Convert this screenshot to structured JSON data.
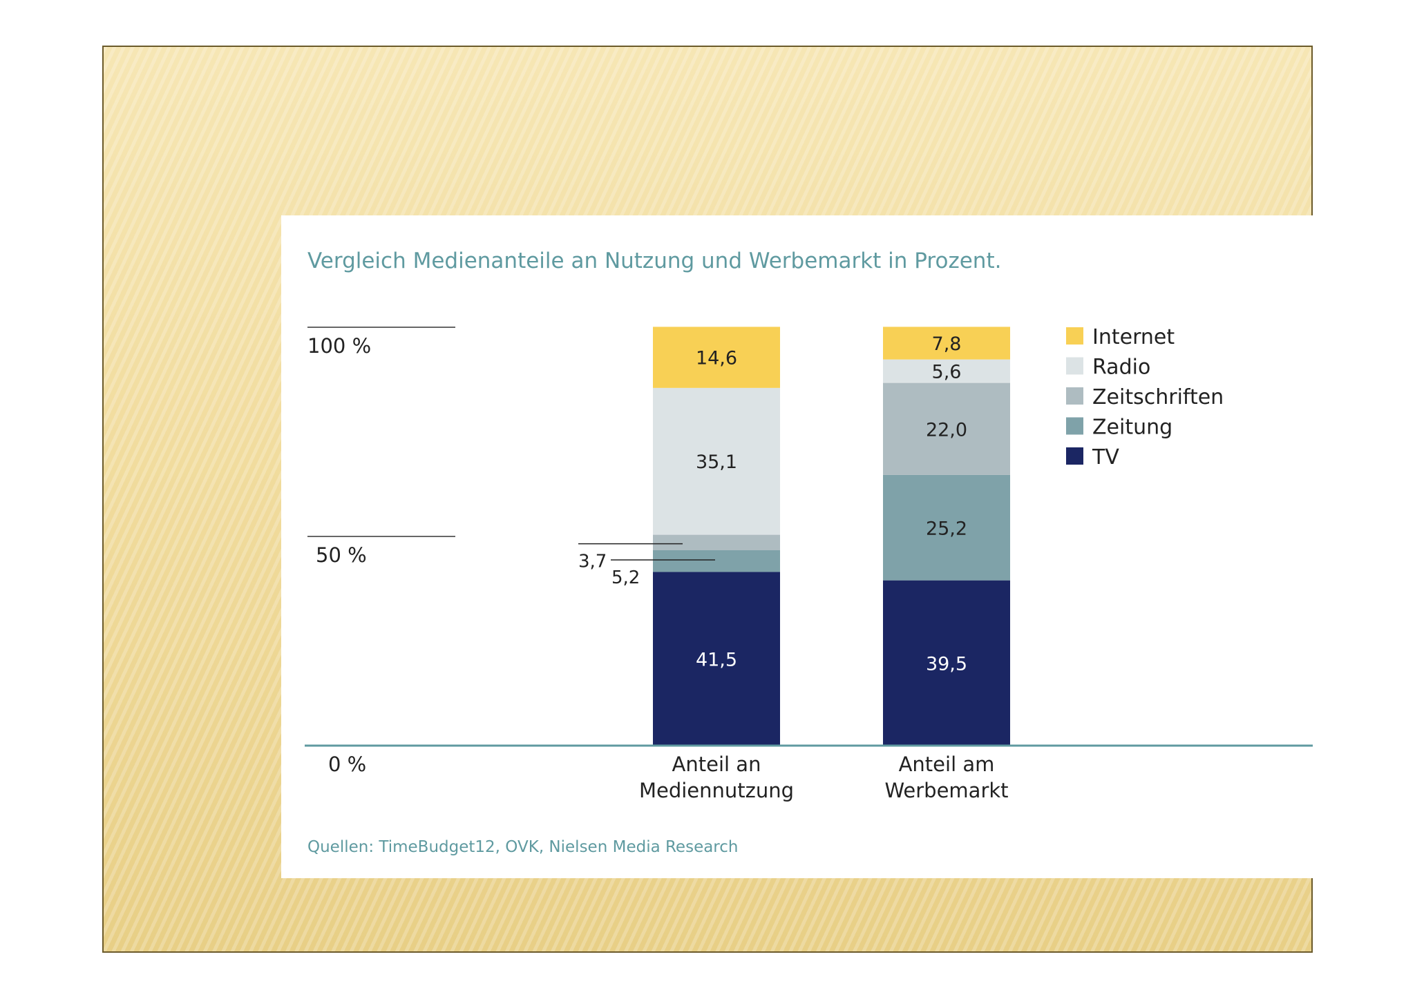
{
  "chart_data": {
    "type": "bar",
    "stacked": true,
    "title": "Vergleich Medienanteile an Nutzung und Werbemarkt in Prozent.",
    "source": "Quellen: TimeBudget12, OVK, Nielsen Media Research",
    "categories": [
      "Anteil an Mediennutzung",
      "Anteil am Werbemarkt"
    ],
    "y_ticks": [
      "100 %",
      "50 %",
      "0 %"
    ],
    "ylim": [
      0,
      100
    ],
    "legend_position": "right",
    "series": [
      {
        "name": "TV",
        "color": "#1b2663",
        "values": [
          41.5,
          39.5
        ],
        "labels": [
          "41,5",
          "39,5"
        ]
      },
      {
        "name": "Zeitung",
        "color": "#7fa2a9",
        "values": [
          5.2,
          25.2
        ],
        "labels": [
          "5,2",
          "25,2"
        ]
      },
      {
        "name": "Zeitschriften",
        "color": "#aebcc1",
        "values": [
          3.7,
          22.0
        ],
        "labels": [
          "3,7",
          "22,0"
        ]
      },
      {
        "name": "Radio",
        "color": "#dce3e5",
        "values": [
          35.1,
          5.6
        ],
        "labels": [
          "35,1",
          "5,6"
        ]
      },
      {
        "name": "Internet",
        "color": "#f8d055",
        "values": [
          14.6,
          7.8
        ],
        "labels": [
          "14,6",
          "7,8"
        ]
      }
    ],
    "legend_order": [
      "Internet",
      "Radio",
      "Zeitschriften",
      "Zeitung",
      "TV"
    ]
  },
  "colors": {
    "title": "#5f9aa0",
    "source": "#5f9aa0",
    "axis_line": "#5f9aa0",
    "text_dark": "#222222"
  }
}
